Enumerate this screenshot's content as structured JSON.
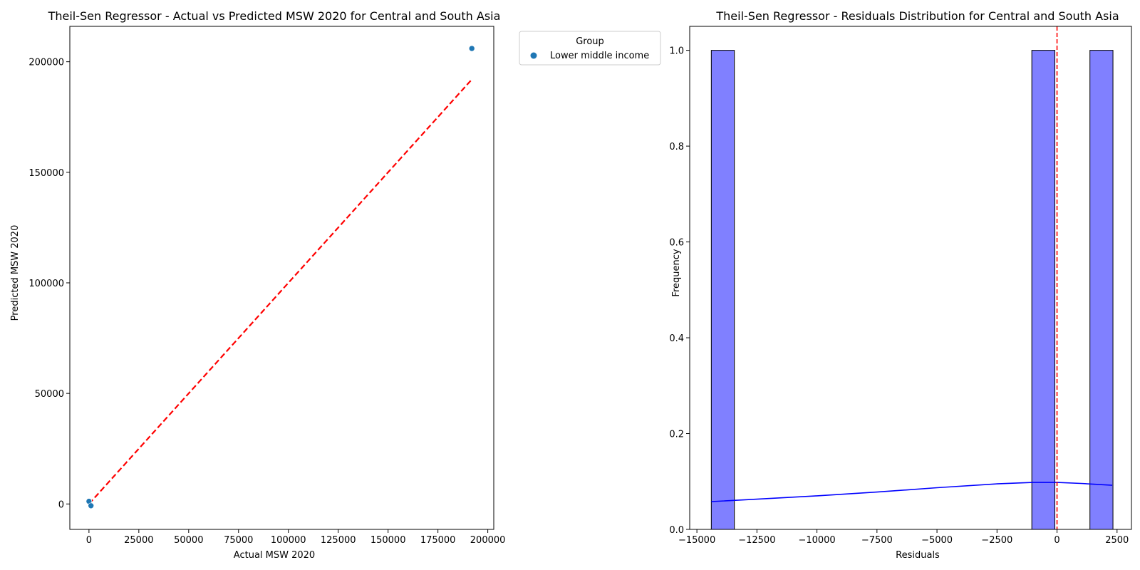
{
  "chart_data": [
    {
      "type": "scatter",
      "title": "Theil-Sen Regressor - Actual vs Predicted MSW 2020 for Central and South Asia",
      "xlabel": "Actual MSW 2020",
      "ylabel": "Predicted MSW 2020",
      "xlim": [
        -9600,
        203000
      ],
      "ylim": [
        -11500,
        216000
      ],
      "xticks": [
        0,
        25000,
        50000,
        75000,
        100000,
        125000,
        150000,
        175000,
        200000
      ],
      "xtick_labels": [
        "0",
        "25000",
        "50000",
        "75000",
        "100000",
        "125000",
        "150000",
        "175000",
        "200000"
      ],
      "yticks": [
        0,
        50000,
        100000,
        150000,
        200000
      ],
      "ytick_labels": [
        "0",
        "50000",
        "100000",
        "150000",
        "200000"
      ],
      "legend": {
        "title": "Group",
        "placement": "outside-top-right"
      },
      "series": [
        {
          "name": "Lower middle income",
          "color": "#1f77b4",
          "points": [
            {
              "x": 0,
              "y": 1200
            },
            {
              "x": 1000,
              "y": -800
            },
            {
              "x": 192000,
              "y": 206000
            }
          ]
        }
      ],
      "reference_line": {
        "style": "dashed",
        "color": "#ff0000",
        "from": [
          0,
          0
        ],
        "to": [
          192000,
          192000
        ]
      },
      "grid": false
    },
    {
      "type": "histogram",
      "title": "Theil-Sen Regressor - Residuals Distribution for Central and South Asia",
      "xlabel": "Residuals",
      "ylabel": "Frequency",
      "xlim": [
        -15300,
        3100
      ],
      "ylim": [
        0,
        1.05
      ],
      "xticks": [
        -15000,
        -12500,
        -10000,
        -7500,
        -5000,
        -2500,
        0,
        2500
      ],
      "xtick_labels": [
        "−15000",
        "−12500",
        "−10000",
        "−7500",
        "−5000",
        "−2500",
        "0",
        "2500"
      ],
      "yticks": [
        0,
        0.2,
        0.4,
        0.6,
        0.8,
        1.0
      ],
      "ytick_labels": [
        "0.0",
        "0.2",
        "0.4",
        "0.6",
        "0.8",
        "1.0"
      ],
      "bar_color": "#8080ff",
      "bars": [
        {
          "x0": -14400,
          "x1": -13440,
          "count": 1
        },
        {
          "x0": -1050,
          "x1": -90,
          "count": 1
        },
        {
          "x0": 1370,
          "x1": 2330,
          "count": 1
        }
      ],
      "kde": {
        "color": "#0000ff",
        "points": [
          {
            "x": -14400,
            "y": 0.058
          },
          {
            "x": -12500,
            "y": 0.063
          },
          {
            "x": -10000,
            "y": 0.07
          },
          {
            "x": -7500,
            "y": 0.078
          },
          {
            "x": -5000,
            "y": 0.087
          },
          {
            "x": -2500,
            "y": 0.095
          },
          {
            "x": -1000,
            "y": 0.098
          },
          {
            "x": 0,
            "y": 0.098
          },
          {
            "x": 1000,
            "y": 0.096
          },
          {
            "x": 2300,
            "y": 0.092
          }
        ]
      },
      "vline": {
        "x": 0,
        "style": "dashed",
        "color": "#ff0000"
      },
      "grid": false
    }
  ]
}
